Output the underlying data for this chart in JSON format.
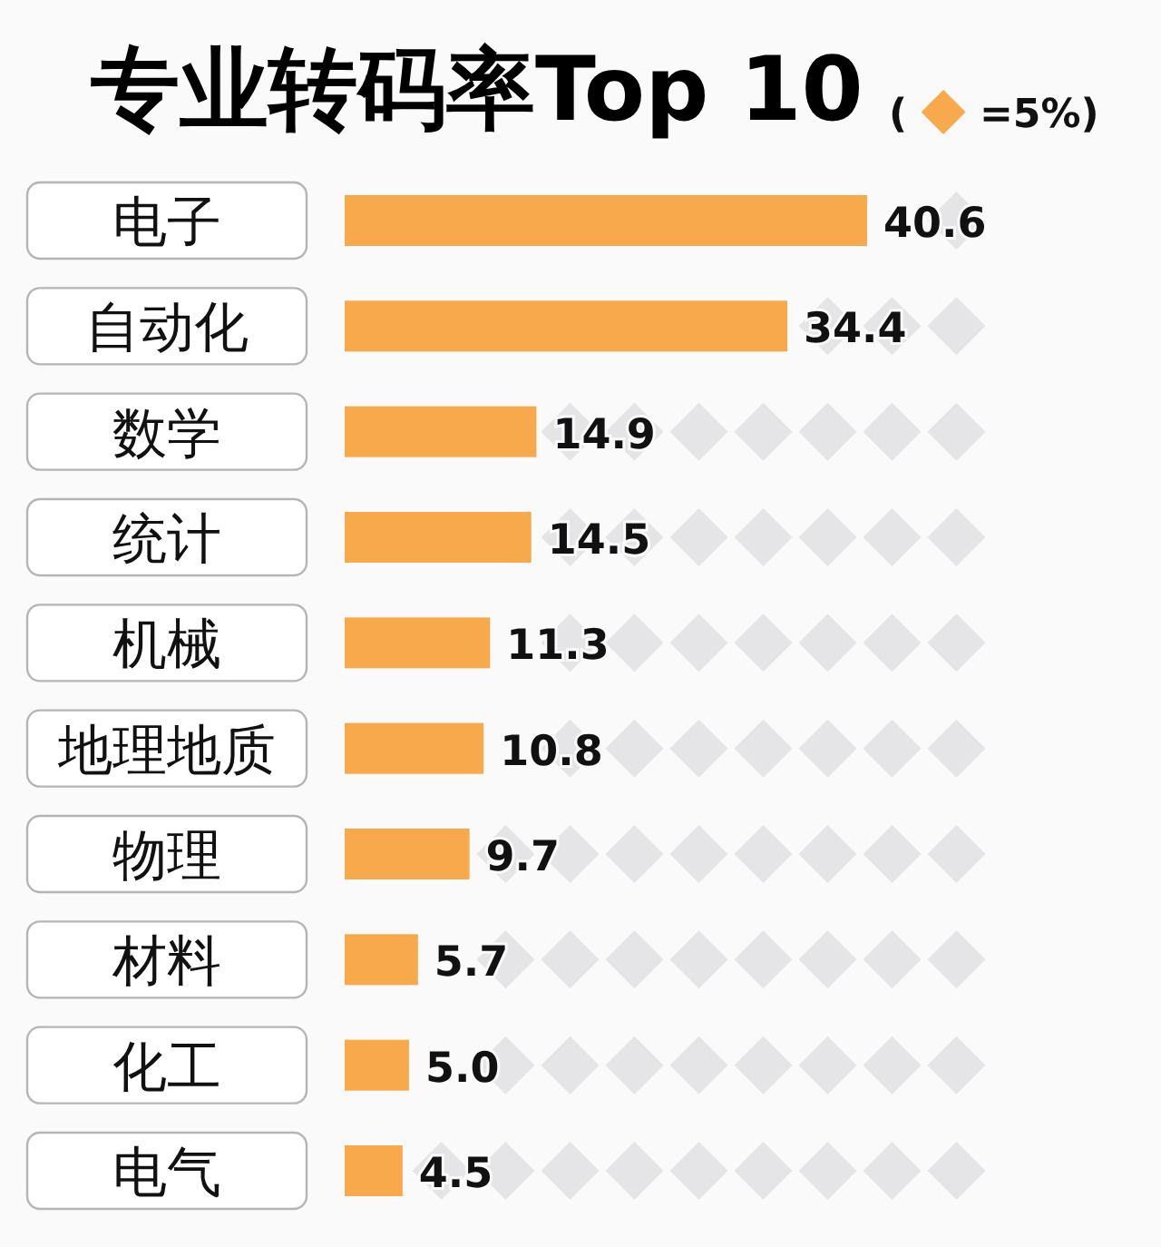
{
  "chart_data": {
    "type": "bar",
    "orientation": "horizontal",
    "title": "专业转码率Top 10",
    "annotations": [
      "( ◆ =5%)"
    ],
    "categories": [
      "电子",
      "自动化",
      "数学",
      "统计",
      "机械",
      "地理地质",
      "物理",
      "材料",
      "化工",
      "电气"
    ],
    "values": [
      40.6,
      34.4,
      14.9,
      14.5,
      11.3,
      10.8,
      9.7,
      5.7,
      5.0,
      4.5
    ],
    "value_labels": [
      "40.6",
      "34.4",
      "14.9",
      "14.5",
      "11.3",
      "10.8",
      "9.7",
      "5.7",
      "5.0",
      "4.5"
    ],
    "color": "#f7a94b",
    "tick_labels": "y"
  }
}
